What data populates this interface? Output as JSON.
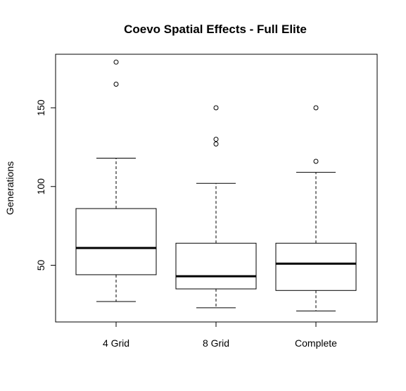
{
  "chart_data": {
    "type": "boxplot",
    "title": "Coevo Spatial Effects - Full Elite",
    "xlabel": "",
    "ylabel": "Generations",
    "ylim": [
      14,
      184
    ],
    "y_ticks": [
      50,
      100,
      150
    ],
    "categories": [
      "4 Grid",
      "8 Grid",
      "Complete"
    ],
    "boxes": [
      {
        "label": "4 Grid",
        "whisker_low": 27,
        "q1": 44,
        "median": 61,
        "q3": 86,
        "whisker_high": 118,
        "outliers": [
          165,
          179
        ]
      },
      {
        "label": "8 Grid",
        "whisker_low": 23,
        "q1": 35,
        "median": 43,
        "q3": 64,
        "whisker_high": 102,
        "outliers": [
          127,
          130,
          150
        ]
      },
      {
        "label": "Complete",
        "whisker_low": 21,
        "q1": 34,
        "median": 51,
        "q3": 64,
        "whisker_high": 109,
        "outliers": [
          116,
          150
        ]
      }
    ],
    "grid": false,
    "legend": "none"
  }
}
